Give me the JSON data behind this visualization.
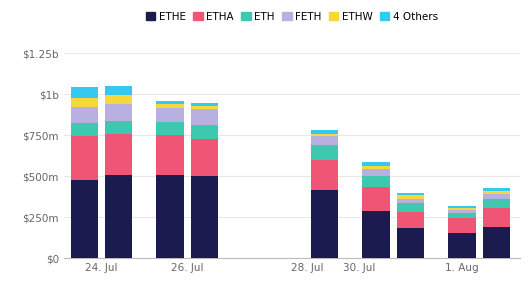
{
  "categories_count": 10,
  "bar_positions": [
    0,
    1,
    2.5,
    3.5,
    6,
    7,
    8.5,
    9.5,
    11,
    12
  ],
  "x_tick_positions": [
    0.5,
    3.0,
    6.5,
    8.0,
    11.0
  ],
  "x_tick_labels": [
    "24. Jul",
    "26. Jul",
    "28. Jul",
    "30. Jul",
    "1. Aug"
  ],
  "series": {
    "ETHE": [
      480,
      510,
      510,
      500,
      0,
      420,
      290,
      185,
      155,
      190
    ],
    "ETHA": [
      265,
      250,
      240,
      230,
      0,
      180,
      145,
      95,
      90,
      115
    ],
    "ETH": [
      80,
      75,
      80,
      85,
      0,
      90,
      65,
      55,
      30,
      60
    ],
    "FETH": [
      100,
      105,
      90,
      95,
      0,
      55,
      45,
      30,
      20,
      30
    ],
    "ETHW": [
      55,
      55,
      20,
      20,
      0,
      15,
      20,
      20,
      10,
      15
    ],
    "4 Others": [
      65,
      55,
      20,
      20,
      0,
      25,
      20,
      15,
      15,
      20
    ]
  },
  "colors": {
    "ETHE": "#1b1b4f",
    "ETHA": "#f05575",
    "ETH": "#3dc8b0",
    "FETH": "#b8b0e0",
    "ETHW": "#f5d83a",
    "4 Others": "#35c8f0"
  },
  "ylim": [
    0,
    1250
  ],
  "yticks": [
    0,
    250,
    500,
    750,
    1000,
    1250
  ],
  "ytick_labels": [
    "$0",
    "$250m",
    "$500m",
    "$750m",
    "$1b",
    "$1.25b"
  ],
  "background_color": "#ffffff",
  "grid_color": "#e8e8e8",
  "bar_width": 0.8,
  "xlim": [
    -0.6,
    12.7
  ],
  "figsize": [
    5.31,
    2.97
  ],
  "dpi": 100
}
